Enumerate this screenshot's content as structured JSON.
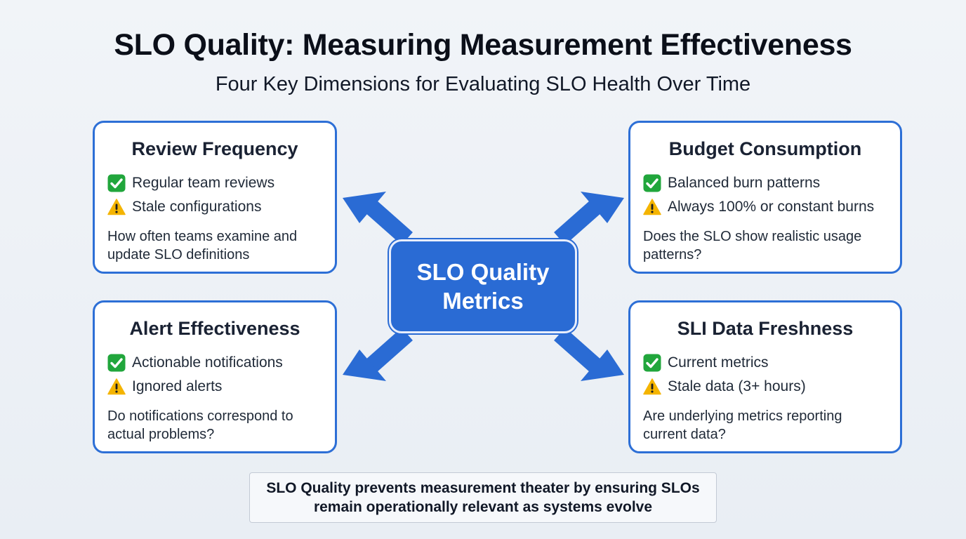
{
  "title": "SLO Quality: Measuring Measurement Effectiveness",
  "subtitle": "Four Key Dimensions for Evaluating SLO Health Over Time",
  "center": "SLO Quality Metrics",
  "colors": {
    "accent": "#2a6bd4",
    "card_border": "#2d6fd6",
    "check": "#21a63c",
    "warning": "#f4b400"
  },
  "cards": [
    {
      "title": "Review Frequency",
      "good": "Regular team reviews",
      "warn": "Stale configurations",
      "desc": "How often teams examine and update SLO definitions"
    },
    {
      "title": "Budget Consumption",
      "good": "Balanced burn patterns",
      "warn": "Always 100% or constant burns",
      "desc": "Does the SLO show realistic usage patterns?"
    },
    {
      "title": "Alert Effectiveness",
      "good": "Actionable notifications",
      "warn": "Ignored alerts",
      "desc": "Do notifications correspond to actual problems?"
    },
    {
      "title": "SLI Data Freshness",
      "good": "Current metrics",
      "warn": "Stale data (3+ hours)",
      "desc": "Are underlying metrics reporting current data?"
    }
  ],
  "icons": {
    "good": "check-mark-icon",
    "warn": "warning-icon"
  },
  "footer": "SLO Quality prevents measurement theater by ensuring SLOs remain operationally relevant as systems evolve"
}
